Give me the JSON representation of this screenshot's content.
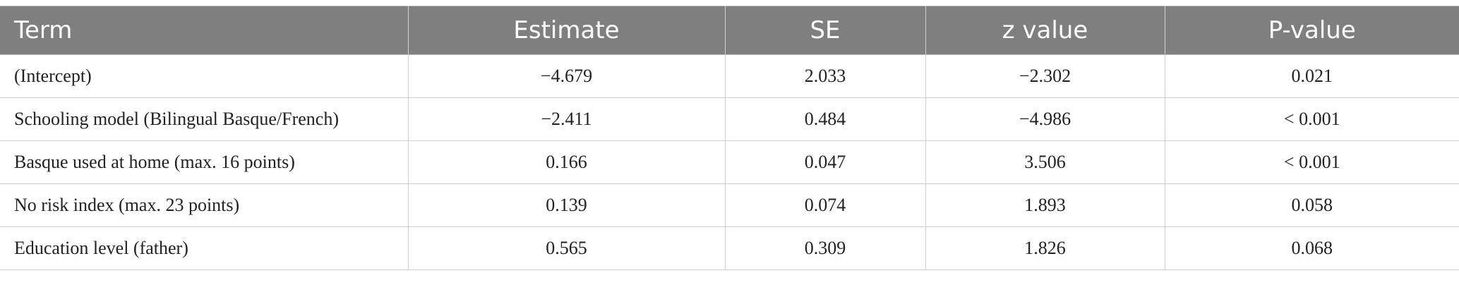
{
  "table": {
    "headers": [
      "Term",
      "Estimate",
      "SE",
      "z value",
      "P-value"
    ],
    "rows": [
      [
        "(Intercept)",
        "−4.679",
        "2.033",
        "−2.302",
        "0.021"
      ],
      [
        "Schooling model (Bilingual Basque/French)",
        "−2.411",
        "0.484",
        "−4.986",
        "< 0.001"
      ],
      [
        "Basque used at home (max. 16 points)",
        "0.166",
        "0.047",
        "3.506",
        "< 0.001"
      ],
      [
        "No risk index (max. 23 points)",
        "0.139",
        "0.074",
        "1.893",
        "0.058"
      ],
      [
        "Education level (father)",
        "0.565",
        "0.309",
        "1.826",
        "0.068"
      ]
    ]
  },
  "colors": {
    "header_bg": "#7f7f7f",
    "header_text": "#ffffff",
    "grid": "#cfcfcf"
  }
}
